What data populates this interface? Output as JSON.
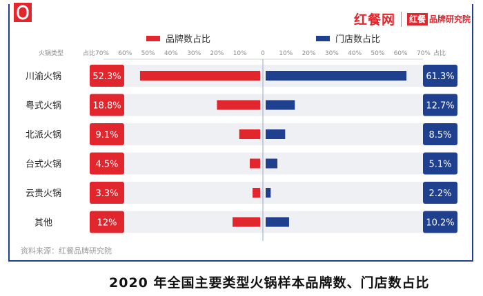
{
  "header": {
    "logo_icon": "red-bracket-logo-icon",
    "brand_main": "红餐网",
    "brand_badge": "红餐",
    "brand_sub": "品牌研究院"
  },
  "colors": {
    "brand": "#e2262e",
    "store": "#1f3f8f",
    "row_bg": "#eff0f4"
  },
  "chart_data": {
    "type": "bar",
    "title": "2020 年全国主要类型火锅样本品牌数、门店数占比",
    "category_header": "火锅类型",
    "percent_header_left": "占比",
    "percent_header_right": "占比",
    "categories": [
      "川渝火锅",
      "粤式火锅",
      "北派火锅",
      "台式火锅",
      "云贵火锅",
      "其他"
    ],
    "series": [
      {
        "name": "品牌数占比",
        "values": [
          52.3,
          18.8,
          9.1,
          4.5,
          3.3,
          12
        ],
        "labels": [
          "52.3%",
          "18.8%",
          "9.1%",
          "4.5%",
          "3.3%",
          "12%"
        ]
      },
      {
        "name": "门店数占比",
        "values": [
          61.3,
          12.7,
          8.5,
          5.1,
          2.2,
          10.2
        ],
        "labels": [
          "61.3%",
          "12.7%",
          "8.5%",
          "5.1%",
          "2.2%",
          "10.2%"
        ]
      }
    ],
    "left_ticks": [
      "70%",
      "60%",
      "50%",
      "40%",
      "30%",
      "20%",
      "10%",
      "0"
    ],
    "right_ticks": [
      "10%",
      "20%",
      "30%",
      "40%",
      "50%",
      "60%",
      "70%"
    ],
    "xlim": [
      0,
      70
    ],
    "source": "资料来源：红餐品牌研究院"
  }
}
